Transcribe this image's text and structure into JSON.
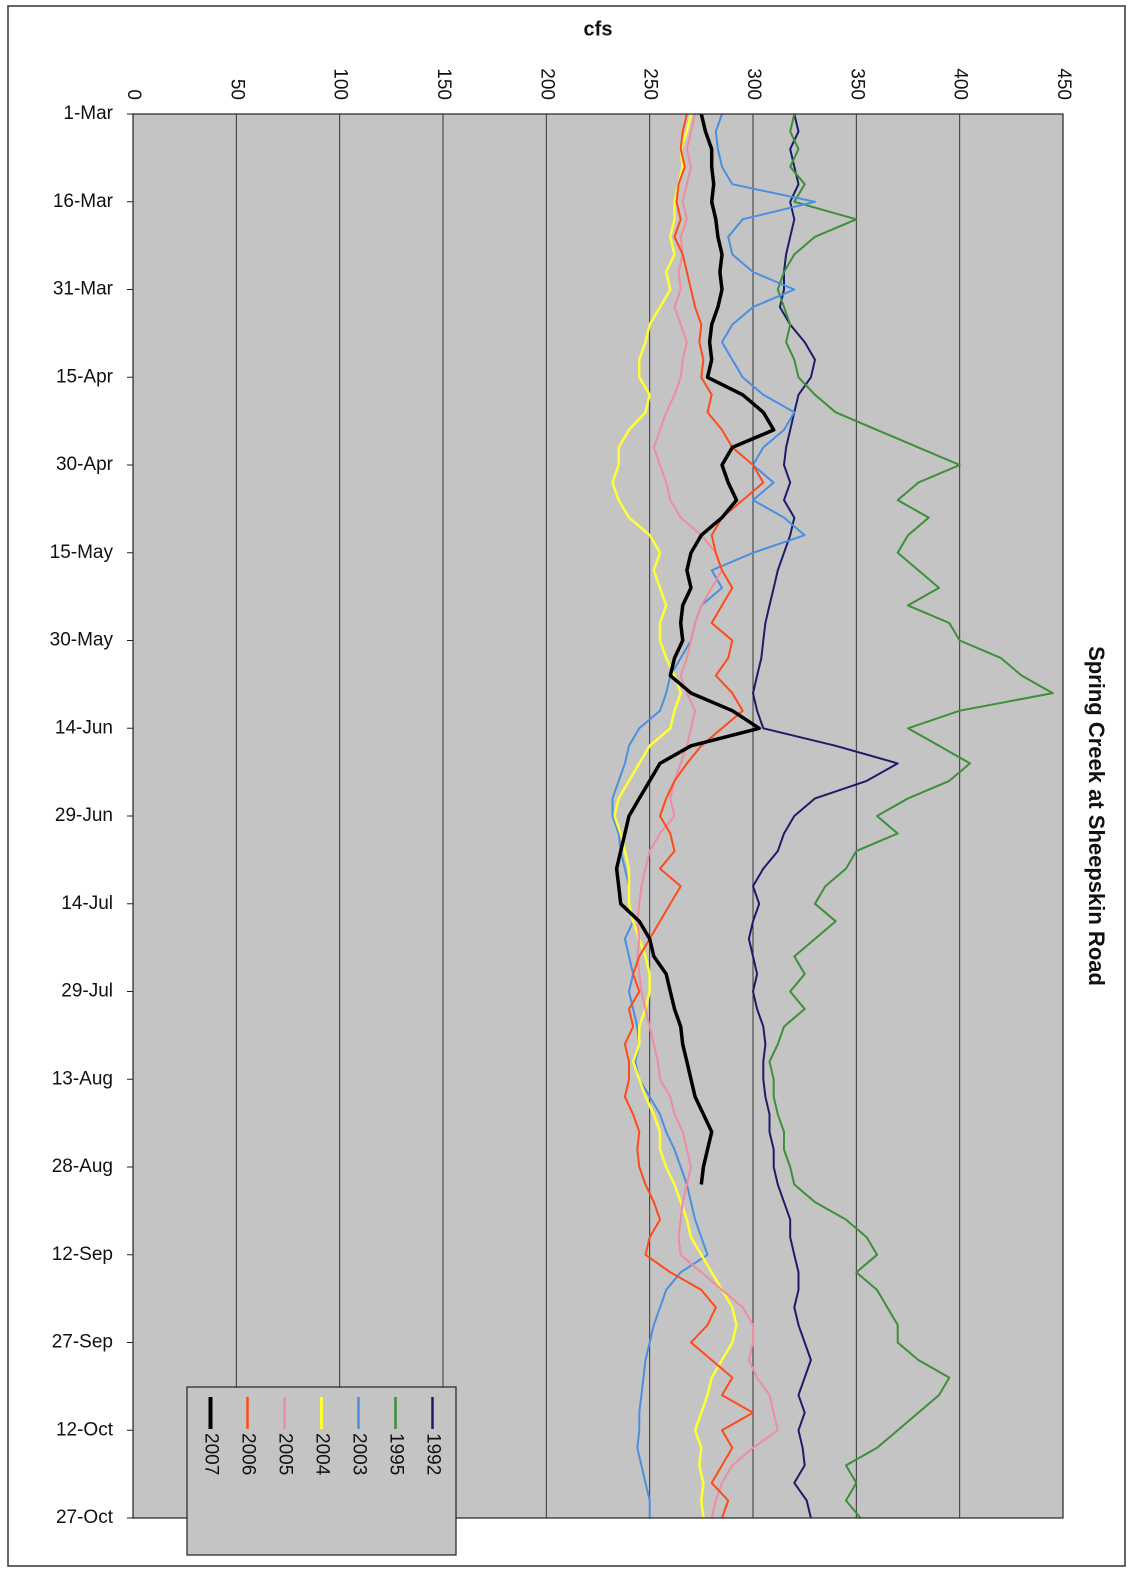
{
  "chart_data": {
    "type": "line",
    "title": "Spring Creek at Sheepskin Road",
    "ylabel": "cfs",
    "ylim": [
      0,
      450
    ],
    "yticks": [
      0,
      50,
      100,
      150,
      200,
      250,
      300,
      350,
      400,
      450
    ],
    "grid": true,
    "legend": "lower left",
    "categories": [
      "1-Mar",
      null,
      null,
      null,
      null,
      "16-Mar",
      null,
      null,
      null,
      null,
      "31-Mar",
      null,
      null,
      null,
      null,
      "15-Apr",
      null,
      null,
      null,
      null,
      "30-Apr",
      null,
      null,
      null,
      null,
      "15-May",
      null,
      null,
      null,
      null,
      "30-May",
      null,
      null,
      null,
      null,
      "14-Jun",
      null,
      null,
      null,
      null,
      "29-Jun",
      null,
      null,
      null,
      null,
      "14-Jul",
      null,
      null,
      null,
      null,
      "29-Jul",
      null,
      null,
      null,
      null,
      "13-Aug",
      null,
      null,
      null,
      null,
      "28-Aug",
      null,
      null,
      null,
      null,
      "12-Sep",
      null,
      null,
      null,
      null,
      "27-Sep",
      null,
      null,
      null,
      null,
      "12-Oct",
      null,
      null,
      null,
      null,
      "27-Oct"
    ],
    "series": [
      {
        "name": "1992",
        "color": "#1c1c6b",
        "linewidth": 2,
        "values": [
          320,
          322,
          318,
          320,
          322,
          318,
          320,
          318,
          316,
          315,
          315,
          313,
          318,
          325,
          330,
          328,
          322,
          320,
          318,
          316,
          315,
          318,
          315,
          320,
          318,
          315,
          312,
          310,
          308,
          306,
          305,
          304,
          302,
          300,
          302,
          305,
          340,
          370,
          355,
          330,
          320,
          315,
          312,
          305,
          300,
          303,
          300,
          298,
          300,
          302,
          300,
          302,
          305,
          306,
          305,
          305,
          306,
          308,
          308,
          310,
          310,
          312,
          315,
          318,
          318,
          320,
          322,
          322,
          320,
          322,
          325,
          328,
          325,
          322,
          325,
          322,
          324,
          325,
          320,
          326,
          328
        ]
      },
      {
        "name": "1995",
        "color": "#3d8f3a",
        "linewidth": 2,
        "values": [
          320,
          318,
          322,
          318,
          325,
          320,
          350,
          330,
          320,
          315,
          312,
          315,
          318,
          316,
          320,
          322,
          330,
          340,
          360,
          380,
          400,
          380,
          370,
          385,
          375,
          370,
          380,
          390,
          375,
          395,
          400,
          420,
          430,
          445,
          400,
          375,
          390,
          405,
          395,
          375,
          360,
          370,
          350,
          345,
          335,
          330,
          340,
          330,
          320,
          325,
          318,
          325,
          315,
          312,
          308,
          310,
          310,
          312,
          315,
          315,
          318,
          320,
          330,
          345,
          355,
          360,
          350,
          360,
          365,
          370,
          370,
          380,
          395,
          390,
          380,
          370,
          360,
          345,
          350,
          345,
          352
        ]
      },
      {
        "name": "2003",
        "color": "#4a8fe0",
        "linewidth": 2,
        "values": [
          285,
          282,
          283,
          285,
          290,
          330,
          295,
          288,
          290,
          300,
          320,
          300,
          290,
          285,
          290,
          295,
          305,
          320,
          315,
          305,
          300,
          310,
          300,
          315,
          325,
          300,
          280,
          285,
          275,
          272,
          270,
          265,
          260,
          258,
          255,
          245,
          240,
          238,
          235,
          232,
          232,
          235,
          236,
          238,
          240,
          240,
          242,
          238,
          240,
          242,
          240,
          242,
          244,
          245,
          243,
          245,
          250,
          255,
          258,
          262,
          265,
          268,
          270,
          272,
          275,
          278,
          265,
          258,
          255,
          252,
          250,
          248,
          247,
          246,
          245,
          245,
          244,
          246,
          248,
          250,
          250
        ]
      },
      {
        "name": "2004",
        "color": "#ffff33",
        "linewidth": 2.5,
        "values": [
          270,
          268,
          265,
          266,
          264,
          262,
          262,
          260,
          262,
          258,
          260,
          255,
          250,
          248,
          245,
          245,
          250,
          248,
          240,
          235,
          235,
          232,
          235,
          240,
          250,
          255,
          252,
          255,
          258,
          255,
          255,
          258,
          262,
          265,
          262,
          260,
          250,
          245,
          240,
          235,
          233,
          236,
          238,
          240,
          240,
          240,
          242,
          245,
          248,
          250,
          250,
          248,
          245,
          245,
          242,
          245,
          248,
          252,
          255,
          255,
          258,
          262,
          265,
          268,
          270,
          275,
          280,
          285,
          290,
          292,
          290,
          285,
          280,
          278,
          275,
          272,
          275,
          274,
          276,
          275,
          276
        ]
      },
      {
        "name": "2005",
        "color": "#f08ca0",
        "linewidth": 2,
        "values": [
          272,
          270,
          268,
          270,
          268,
          266,
          268,
          265,
          266,
          264,
          265,
          262,
          265,
          268,
          266,
          265,
          262,
          258,
          255,
          252,
          255,
          258,
          260,
          265,
          275,
          282,
          285,
          280,
          275,
          272,
          270,
          268,
          265,
          268,
          272,
          270,
          268,
          265,
          262,
          260,
          262,
          255,
          250,
          248,
          246,
          245,
          244,
          245,
          244,
          245,
          246,
          248,
          250,
          252,
          254,
          255,
          260,
          262,
          266,
          268,
          270,
          268,
          266,
          265,
          264,
          265,
          275,
          285,
          295,
          300,
          300,
          298,
          302,
          308,
          310,
          312,
          300,
          290,
          285,
          282,
          280
        ]
      },
      {
        "name": "2006",
        "color": "#ff4a1a",
        "linewidth": 2,
        "values": [
          268,
          266,
          265,
          267,
          264,
          263,
          265,
          262,
          266,
          268,
          270,
          272,
          275,
          274,
          276,
          275,
          280,
          278,
          285,
          290,
          300,
          305,
          295,
          285,
          280,
          282,
          285,
          290,
          285,
          280,
          290,
          288,
          282,
          290,
          295,
          285,
          275,
          268,
          262,
          258,
          255,
          260,
          262,
          255,
          265,
          260,
          255,
          250,
          245,
          242,
          245,
          240,
          242,
          238,
          240,
          240,
          238,
          242,
          245,
          244,
          245,
          248,
          252,
          255,
          250,
          248,
          260,
          275,
          282,
          278,
          270,
          280,
          290,
          285,
          300,
          285,
          290,
          285,
          280,
          288,
          285
        ]
      },
      {
        "name": "2007",
        "color": "#000000",
        "linewidth": 3.5,
        "values": [
          275,
          277,
          280,
          280,
          281,
          280,
          282,
          283,
          285,
          284,
          285,
          283,
          280,
          279,
          280,
          278,
          295,
          305,
          310,
          290,
          285,
          288,
          292,
          285,
          275,
          270,
          268,
          270,
          266,
          265,
          266,
          262,
          260,
          270,
          290,
          303,
          270,
          255,
          250,
          245,
          240,
          238,
          236,
          234,
          235,
          236,
          245,
          250,
          252,
          258,
          260,
          262,
          265,
          266,
          268,
          270,
          272,
          276,
          280,
          278,
          276,
          275,
          null,
          null,
          null,
          null,
          null,
          null,
          null,
          null,
          null,
          null,
          null,
          null,
          null,
          null,
          null,
          null,
          null,
          null,
          null
        ]
      }
    ]
  }
}
